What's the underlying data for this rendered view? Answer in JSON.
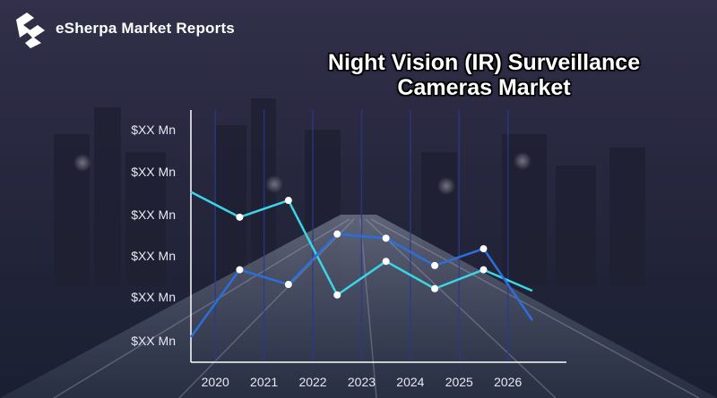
{
  "brand": {
    "name": "eSherpa Market Reports",
    "logo_icon": "esherpa-logo-icon"
  },
  "colors": {
    "series_a": "#3ad6e6",
    "series_b": "#2c6fd8",
    "axis": "#ffffff",
    "marker": "#ffffff"
  },
  "chart_data": {
    "type": "line",
    "title_lines": [
      "Night Vision (IR) Surveillance",
      "Cameras Market"
    ],
    "x_ticks": [
      "2020",
      "2021",
      "2022",
      "2023",
      "2024",
      "2025",
      "2026"
    ],
    "y_ticks": [
      "$XX Mn",
      "$XX Mn",
      "$XX Mn",
      "$XX Mn",
      "$XX Mn",
      "$XX Mn"
    ],
    "x": [
      2019.5,
      2020.5,
      2021.5,
      2022.5,
      2023.5,
      2024.5,
      2025.5,
      2026.5
    ],
    "xlim": [
      2019.5,
      2027.2
    ],
    "ylim": [
      0,
      6
    ],
    "series": [
      {
        "values": [
          4.05,
          3.45,
          3.85,
          1.6,
          2.4,
          1.75,
          2.2,
          1.7
        ],
        "markers": [
          false,
          true,
          true,
          true,
          true,
          true,
          true,
          false
        ],
        "color": "series_a"
      },
      {
        "values": [
          0.6,
          2.2,
          1.85,
          3.05,
          2.95,
          2.3,
          2.7,
          1.0
        ],
        "markers": [
          false,
          true,
          true,
          true,
          true,
          true,
          true,
          false
        ],
        "color": "series_b"
      }
    ],
    "grid": "vertical",
    "legend": "none"
  }
}
